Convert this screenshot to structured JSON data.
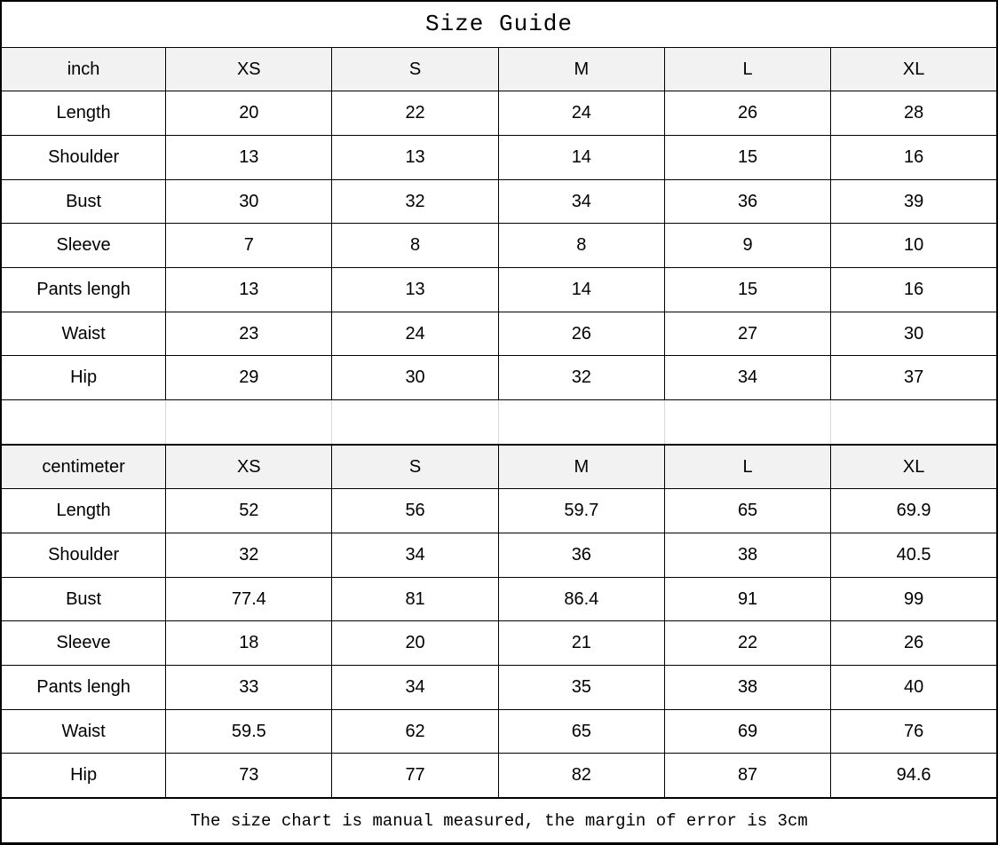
{
  "page": {
    "title": "Size Guide",
    "footer_note": "The size chart is manual measured, the margin of error is 3cm"
  },
  "colors": {
    "border": "#000000",
    "header_bg": "#f2f2f2",
    "spacer_line": "#d9d9d9",
    "background": "#ffffff",
    "text": "#000000"
  },
  "chart_data": {
    "type": "table",
    "title": "Size Guide",
    "footnote": "The size chart is manual measured, the margin of error is 3cm",
    "sections": [
      {
        "unit_label": "inch",
        "size_headers": [
          "XS",
          "S",
          "M",
          "L",
          "XL"
        ],
        "rows": [
          {
            "label": "Length",
            "values": [
              "20",
              "22",
              "24",
              "26",
              "28"
            ]
          },
          {
            "label": "Shoulder",
            "values": [
              "13",
              "13",
              "14",
              "15",
              "16"
            ]
          },
          {
            "label": "Bust",
            "values": [
              "30",
              "32",
              "34",
              "36",
              "39"
            ]
          },
          {
            "label": "Sleeve",
            "values": [
              "7",
              "8",
              "8",
              "9",
              "10"
            ]
          },
          {
            "label": "Pants lengh",
            "values": [
              "13",
              "13",
              "14",
              "15",
              "16"
            ]
          },
          {
            "label": "Waist",
            "values": [
              "23",
              "24",
              "26",
              "27",
              "30"
            ]
          },
          {
            "label": "Hip",
            "values": [
              "29",
              "30",
              "32",
              "34",
              "37"
            ]
          }
        ]
      },
      {
        "unit_label": "centimeter",
        "size_headers": [
          "XS",
          "S",
          "M",
          "L",
          "XL"
        ],
        "rows": [
          {
            "label": "Length",
            "values": [
              "52",
              "56",
              "59.7",
              "65",
              "69.9"
            ]
          },
          {
            "label": "Shoulder",
            "values": [
              "32",
              "34",
              "36",
              "38",
              "40.5"
            ]
          },
          {
            "label": "Bust",
            "values": [
              "77.4",
              "81",
              "86.4",
              "91",
              "99"
            ]
          },
          {
            "label": "Sleeve",
            "values": [
              "18",
              "20",
              "21",
              "22",
              "26"
            ]
          },
          {
            "label": "Pants lengh",
            "values": [
              "33",
              "34",
              "35",
              "38",
              "40"
            ]
          },
          {
            "label": "Waist",
            "values": [
              "59.5",
              "62",
              "65",
              "69",
              "76"
            ]
          },
          {
            "label": "Hip",
            "values": [
              "73",
              "77",
              "82",
              "87",
              "94.6"
            ]
          }
        ]
      }
    ]
  }
}
